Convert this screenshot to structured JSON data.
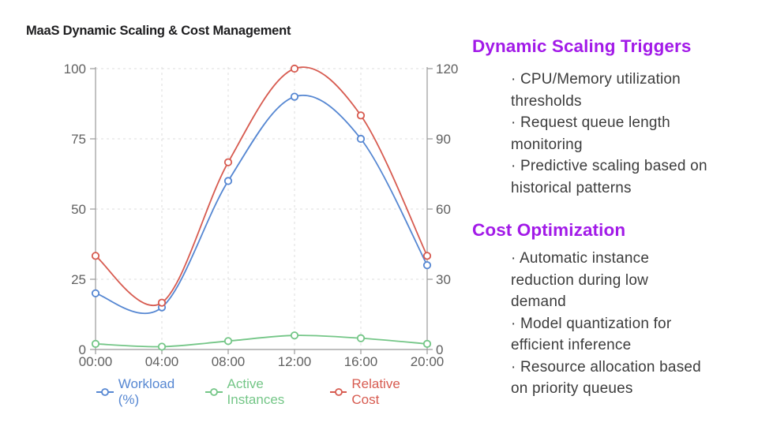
{
  "chart_data": {
    "type": "line",
    "title": "MaaS Dynamic Scaling & Cost Management",
    "categories": [
      "00:00",
      "04:00",
      "08:00",
      "12:00",
      "16:00",
      "20:00"
    ],
    "series": [
      {
        "name": "Workload (%)",
        "axis": "left",
        "color": "#5687D2",
        "values": [
          20,
          15,
          60,
          90,
          75,
          30
        ]
      },
      {
        "name": "Active Instances",
        "axis": "left",
        "color": "#74C687",
        "values": [
          2,
          1,
          3,
          5,
          4,
          2
        ]
      },
      {
        "name": "Relative Cost",
        "axis": "right",
        "color": "#D75B50",
        "values": [
          40,
          20,
          80,
          120,
          100,
          40
        ]
      }
    ],
    "left_axis": {
      "ticks": [
        100,
        75,
        50,
        25,
        0
      ],
      "range": [
        0,
        100
      ]
    },
    "right_axis": {
      "ticks": [
        120,
        90,
        60,
        30,
        0
      ],
      "range": [
        0,
        120
      ]
    },
    "grid": "dashed",
    "legend_position": "bottom",
    "marker": "circle-on-line",
    "axis_label_color": "#606060",
    "axis_line_color": "#999999",
    "grid_color": "#dcdcdc"
  },
  "info_panel": {
    "accent_color": "#A21AE8",
    "text_color": "#3c3c3c",
    "sections": [
      {
        "heading": "Dynamic Scaling Triggers",
        "bullets": [
          [
            "· CPU/Memory utilization",
            "thresholds"
          ],
          [
            "· Request queue length",
            "monitoring"
          ],
          [
            "· Predictive scaling based on",
            "historical patterns"
          ]
        ]
      },
      {
        "heading": "Cost Optimization",
        "bullets": [
          [
            "· Automatic instance",
            "reduction during low",
            "demand"
          ],
          [
            "· Model quantization for",
            "efficient inference"
          ],
          [
            "· Resource allocation based",
            "on priority queues"
          ]
        ]
      }
    ]
  }
}
